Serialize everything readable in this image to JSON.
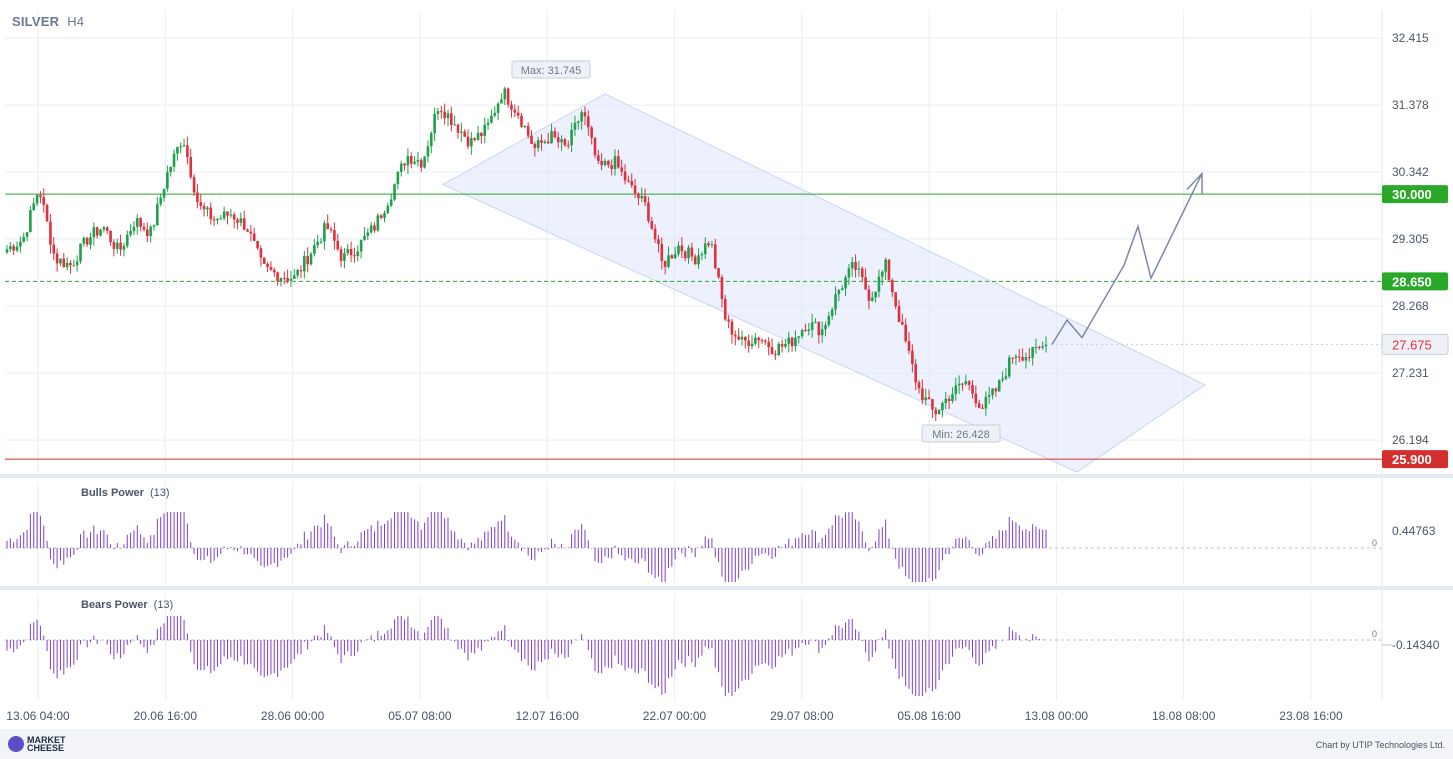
{
  "header": {
    "symbol": "SILVER",
    "timeframe": "H4"
  },
  "footer": {
    "brand_line1": "MARKET",
    "brand_line2": "CHEESE",
    "credit": "Chart by UTIP Technologies Ltd."
  },
  "colors": {
    "bull": "#1fa04a",
    "bear": "#e0303e",
    "grid": "#e9edf3",
    "channel": "#dfe6fb",
    "indicator": "#7e3fd0",
    "support": "#d32f2f",
    "resistance": "#2aa82a"
  },
  "chart_data": [
    {
      "type": "candlestick",
      "title": "",
      "ylim": [
        25.7,
        32.85
      ],
      "y_ticks": [
        "32.415",
        "31.378",
        "30.342",
        "29.305",
        "28.268",
        "27.231",
        "26.194"
      ],
      "x_ticks": [
        "13.06 04:00",
        "20.06 16:00",
        "28.06 00:00",
        "05.07 08:00",
        "12.07 16:00",
        "22.07 00:00",
        "29.07 08:00",
        "05.08 16:00",
        "13.08 00:00",
        "18.08 08:00",
        "23.08 16:00"
      ],
      "price_path": [
        29.15,
        29.3,
        30.1,
        29.0,
        28.9,
        29.3,
        29.5,
        29.1,
        29.6,
        29.4,
        30.3,
        30.9,
        29.8,
        29.6,
        29.7,
        29.5,
        28.85,
        28.75,
        28.7,
        29.1,
        29.5,
        29.0,
        29.2,
        29.5,
        30.0,
        30.6,
        30.5,
        31.4,
        31.1,
        30.8,
        31.0,
        31.6,
        31.25,
        30.7,
        30.9,
        30.7,
        31.3,
        30.4,
        30.5,
        30.1,
        29.8,
        28.9,
        29.2,
        29.0,
        29.3,
        28.0,
        27.7,
        27.8,
        27.6,
        27.7,
        28.0,
        27.9,
        28.5,
        28.9,
        28.4,
        28.9,
        27.9,
        27.0,
        26.6,
        26.9,
        27.1,
        26.7,
        27.0,
        27.55,
        27.5,
        27.675
      ],
      "max_label": "Max: 31.745",
      "min_label": "Min: 26.428",
      "current_price": "27.675",
      "levels": [
        {
          "price": 30.0,
          "label": "30.000",
          "style": "solid",
          "color": "#2aa82a"
        },
        {
          "price": 28.65,
          "label": "28.650",
          "style": "dashed",
          "color": "#2aa82a"
        },
        {
          "price": 25.9,
          "label": "25.900",
          "style": "solid",
          "color": "#d32f2f"
        }
      ],
      "forecast_path": [
        27.675,
        28.05,
        27.78,
        28.9,
        29.5,
        28.7,
        30.32
      ]
    },
    {
      "type": "bar",
      "title": "Bulls Power",
      "period": "(13)",
      "value_label": "0.44763",
      "zero_label": "0"
    },
    {
      "type": "bar",
      "title": "Bears Power",
      "period": "(13)",
      "value_label": "-0.14340",
      "zero_label": "0"
    }
  ]
}
